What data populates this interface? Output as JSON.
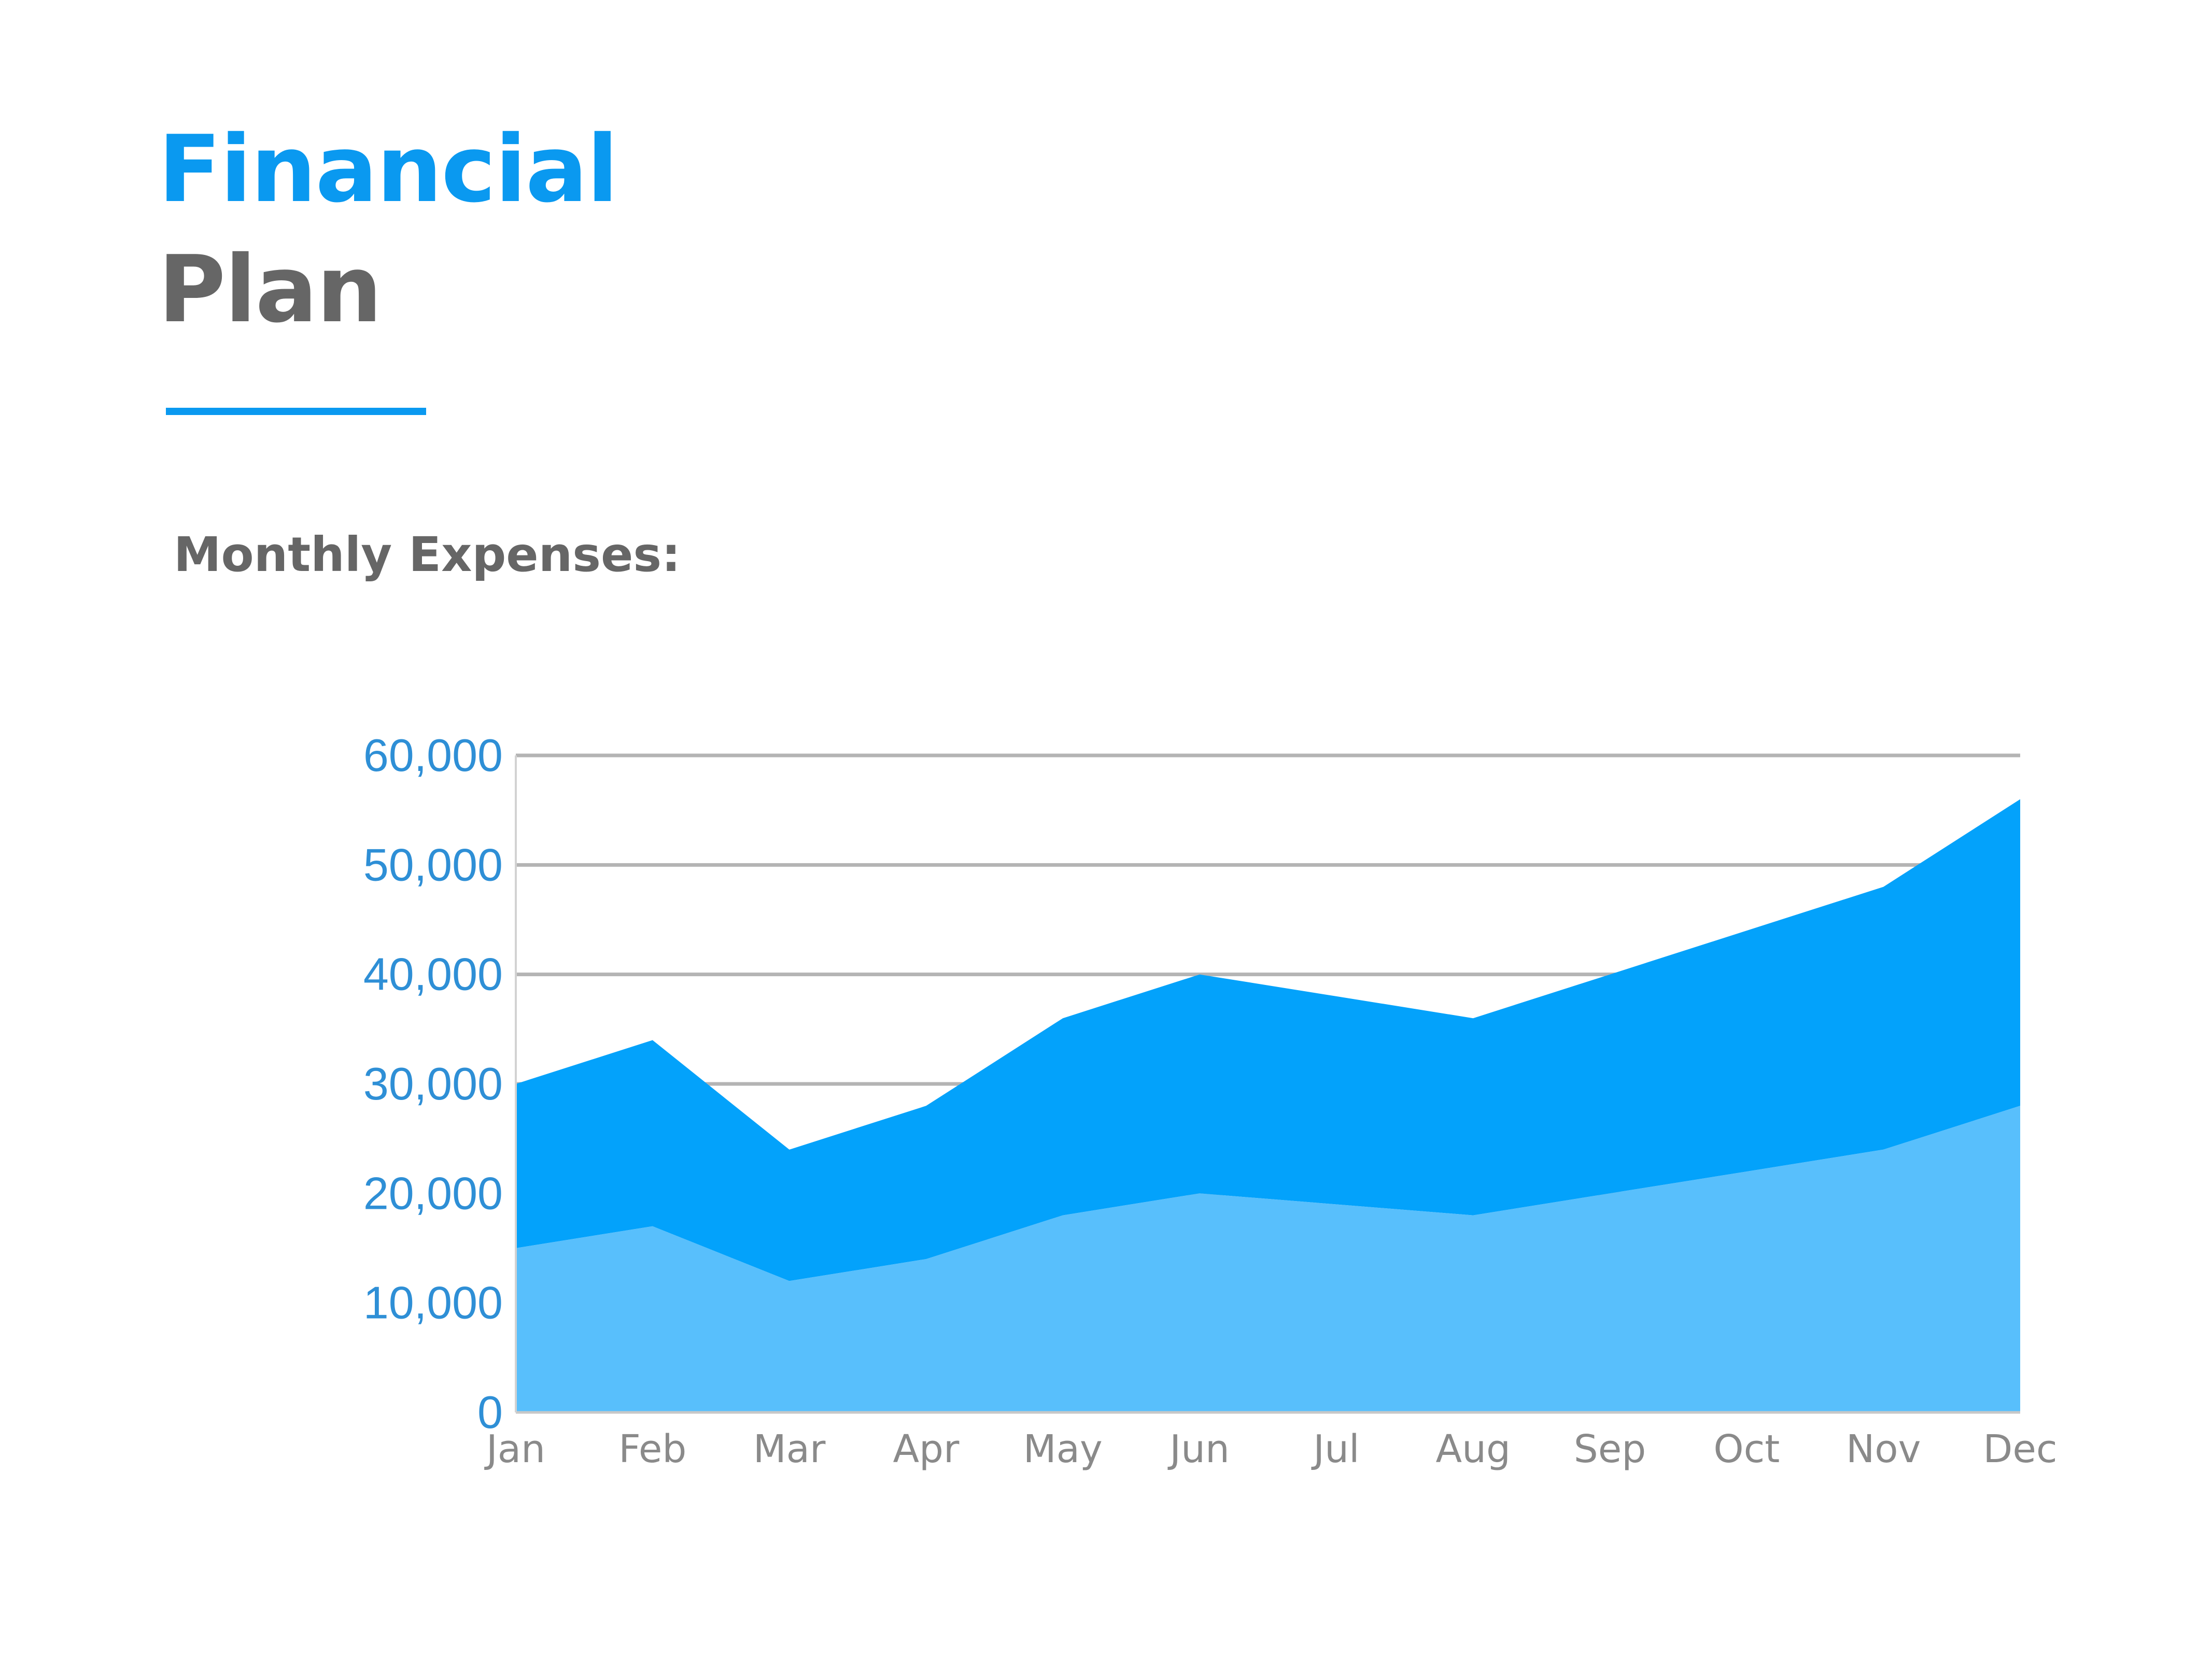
{
  "header": {
    "title_line1": "Financial",
    "title_line2": "Plan",
    "subtitle": "Monthly Expenses:"
  },
  "colors": {
    "accent": "#0a99f0",
    "title_gray": "#666666",
    "series_total": "#03a2fb",
    "series_base": "#58bffc",
    "y_tick": "#2e8fd6",
    "x_tick": "#8a8a8a",
    "grid": "#b4b4b4"
  },
  "chart_data": {
    "type": "area",
    "stacked": true,
    "categories": [
      "Jan",
      "Feb",
      "Mar",
      "Apr",
      "May",
      "Jun",
      "Jul",
      "Aug",
      "Sep",
      "Oct",
      "Nov",
      "Dec"
    ],
    "series": [
      {
        "values": [
          15000,
          17000,
          12000,
          14000,
          18000,
          20000,
          19000,
          18000,
          20000,
          22000,
          24000,
          28000
        ]
      },
      {
        "values": [
          15000,
          17000,
          12000,
          14000,
          18000,
          20000,
          19000,
          18000,
          20000,
          22000,
          24000,
          28000
        ]
      }
    ],
    "ylim": [
      0,
      60000
    ],
    "yticks": [
      "0",
      "10,000",
      "20,000",
      "30,000",
      "40,000",
      "50,000",
      "60,000"
    ],
    "ytick_values": [
      0,
      10000,
      20000,
      30000,
      40000,
      50000,
      60000
    ],
    "grid": true,
    "xlabel": "",
    "ylabel": ""
  }
}
